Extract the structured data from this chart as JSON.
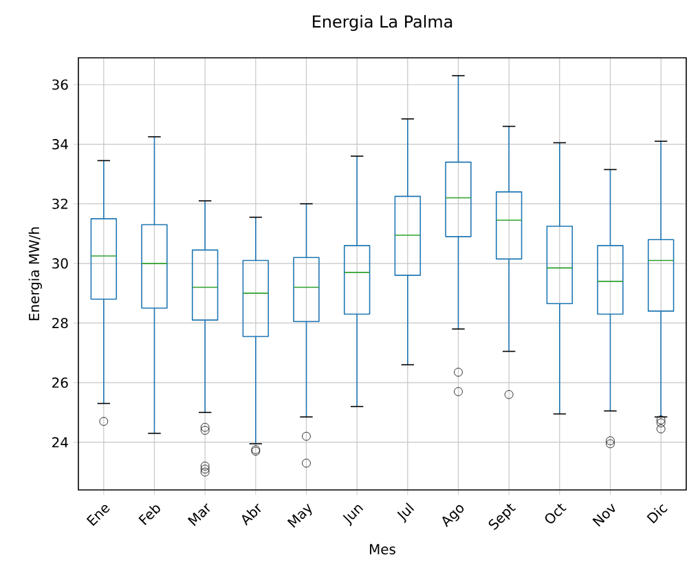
{
  "chart_data": {
    "type": "box",
    "title": "Energia La Palma",
    "xlabel": "Mes",
    "ylabel": "Energia MW/h",
    "categories": [
      "Ene",
      "Feb",
      "Mar",
      "Abr",
      "May",
      "Jun",
      "Jul",
      "Ago",
      "Sept",
      "Oct",
      "Nov",
      "Dic"
    ],
    "color": "#1f77b4",
    "boxes": [
      {
        "low": 25.3,
        "q1": 28.8,
        "median": 30.25,
        "q3": 31.5,
        "high": 33.45,
        "outliers": [
          24.7
        ]
      },
      {
        "low": 24.3,
        "q1": 28.5,
        "median": 30.0,
        "q3": 31.3,
        "high": 34.25
      },
      {
        "low": 25.0,
        "q1": 28.1,
        "median": 29.2,
        "q3": 30.45,
        "high": 32.1,
        "outliers": [
          24.5,
          24.4,
          23.2,
          23.1,
          23.0
        ]
      },
      {
        "low": 23.95,
        "q1": 27.55,
        "median": 29.0,
        "q3": 30.1,
        "high": 31.55,
        "outliers": [
          23.75,
          23.7
        ]
      },
      {
        "low": 24.85,
        "q1": 28.05,
        "median": 29.2,
        "q3": 30.2,
        "high": 32.0,
        "outliers": [
          24.2,
          23.3
        ]
      },
      {
        "low": 25.2,
        "q1": 28.3,
        "median": 29.7,
        "q3": 30.6,
        "high": 33.6
      },
      {
        "low": 26.6,
        "q1": 29.6,
        "median": 30.95,
        "q3": 32.25,
        "high": 34.85
      },
      {
        "low": 27.8,
        "q1": 30.9,
        "median": 32.2,
        "q3": 33.4,
        "high": 36.3,
        "outliers": [
          26.35,
          25.7
        ]
      },
      {
        "low": 27.05,
        "q1": 30.15,
        "median": 31.45,
        "q3": 32.4,
        "high": 34.6,
        "outliers": [
          25.6
        ]
      },
      {
        "low": 24.95,
        "q1": 28.65,
        "median": 29.85,
        "q3": 31.25,
        "high": 34.05
      },
      {
        "low": 25.05,
        "q1": 28.3,
        "median": 29.4,
        "q3": 30.6,
        "high": 33.15,
        "outliers": [
          24.05,
          23.95
        ]
      },
      {
        "low": 24.85,
        "q1": 28.4,
        "median": 30.1,
        "q3": 30.8,
        "high": 34.1,
        "outliers": [
          24.75,
          24.65,
          24.45
        ]
      }
    ],
    "ylim": [
      22.4,
      36.9
    ],
    "yticks": [
      24,
      26,
      28,
      30,
      32,
      34,
      36
    ],
    "grid": true
  }
}
